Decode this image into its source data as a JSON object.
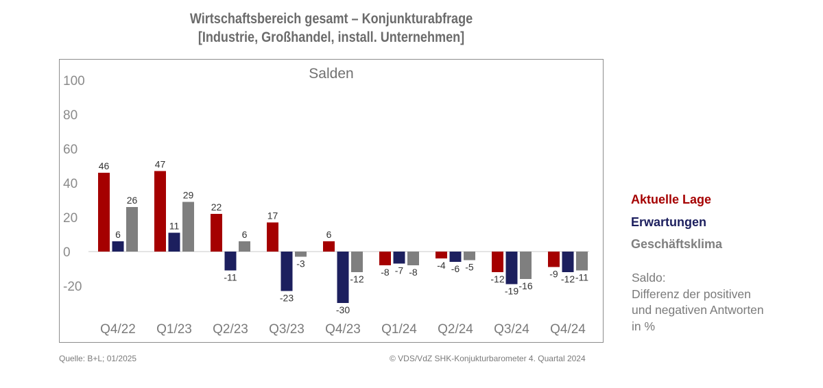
{
  "title": {
    "line1": "Wirtschaftsbereich gesamt – Konjunkturabfrage",
    "line2": "[Industrie, Großhandel, install. Unternehmen]"
  },
  "chart_data": {
    "type": "bar",
    "title": "Wirtschaftsbereich gesamt – Konjunkturabfrage [Industrie, Großhandel, install. Unternehmen]",
    "subtitle": "Salden",
    "categories": [
      "Q4/22",
      "Q1/23",
      "Q2/23",
      "Q3/23",
      "Q4/23",
      "Q1/24",
      "Q2/24",
      "Q3/24",
      "Q4/24"
    ],
    "series": [
      {
        "name": "Aktuelle Lage",
        "color": "#a50000",
        "values": [
          46,
          47,
          22,
          17,
          6,
          -8,
          -4,
          -12,
          -9
        ]
      },
      {
        "name": "Erwartungen",
        "color": "#1c1f5e",
        "values": [
          6,
          11,
          -11,
          -23,
          -30,
          -7,
          -6,
          -19,
          -12
        ]
      },
      {
        "name": "Geschäftsklima",
        "color": "#7f7f7f",
        "values": [
          26,
          29,
          6,
          -3,
          -12,
          -8,
          -5,
          -16,
          -11
        ]
      }
    ],
    "yticks": [
      100,
      80,
      60,
      40,
      20,
      0,
      -20
    ],
    "ylim": [
      -40,
      100
    ],
    "xlabel": "",
    "ylabel": "",
    "grid": false,
    "legend_position": "right"
  },
  "legend_note": [
    "Saldo:",
    "Differenz der positiven",
    "und negativen Antworten",
    "in %"
  ],
  "footer": {
    "source": "Quelle: B+L; 01/2025",
    "copyright": "© VDS/VdZ SHK-Konjukturbarometer 4. Quartal 2024"
  }
}
